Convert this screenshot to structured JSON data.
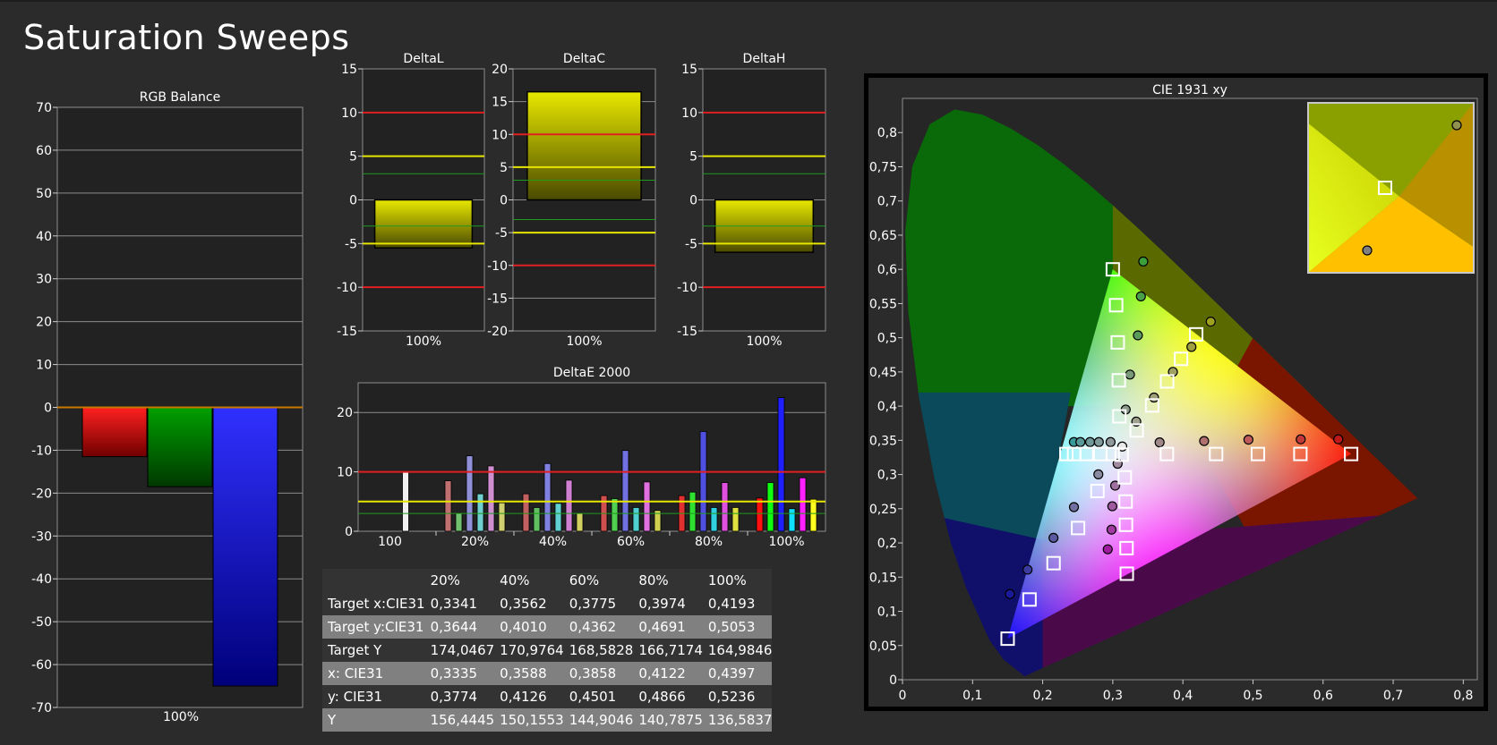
{
  "page": {
    "title": "Saturation Sweeps"
  },
  "colors": {
    "background": "#2b2b2b",
    "plot_bg": "#222222",
    "grid": "#8c8c8c",
    "red_line": "#e02020",
    "yellow_line": "#e6e600",
    "green_line": "#1f9a1f",
    "bar_yellow": "#d8d800"
  },
  "chart_data": [
    {
      "id": "rgb_balance",
      "type": "bar",
      "title": "RGB Balance",
      "categories": [
        "100%"
      ],
      "series": [
        {
          "values": [
            -11.5
          ]
        },
        {
          "values": [
            -18.5
          ]
        },
        {
          "values": [
            -65
          ]
        }
      ],
      "bar_colors": [
        "#ff0000",
        "#008000",
        "#0000ff"
      ],
      "ylim": [
        -70,
        70
      ],
      "yticks": [
        70,
        60,
        50,
        40,
        30,
        20,
        10,
        0,
        -10,
        -20,
        -30,
        -40,
        -50,
        -60,
        -70
      ],
      "grid": true
    },
    {
      "id": "deltaL",
      "type": "bar",
      "title": "DeltaL",
      "categories": [
        "100%"
      ],
      "values": [
        -5.5
      ],
      "ylim": [
        -15,
        15
      ],
      "yticks": [
        15,
        10,
        5,
        0,
        -5,
        -10,
        -15
      ],
      "thresholds": {
        "red": [
          10,
          -10
        ],
        "yellow": [
          5,
          -5
        ],
        "green": [
          3,
          -3
        ]
      },
      "grid": true
    },
    {
      "id": "deltaC",
      "type": "bar",
      "title": "DeltaC",
      "categories": [
        "100%"
      ],
      "values": [
        16.5
      ],
      "ylim": [
        -20,
        20
      ],
      "yticks": [
        20,
        15,
        10,
        5,
        0,
        -5,
        -10,
        -15,
        -20
      ],
      "thresholds": {
        "red": [
          10,
          -10
        ],
        "yellow": [
          5,
          -5
        ],
        "green": [
          3,
          -3
        ]
      },
      "grid": true
    },
    {
      "id": "deltaH",
      "type": "bar",
      "title": "DeltaH",
      "categories": [
        "100%"
      ],
      "values": [
        -6
      ],
      "ylim": [
        -15,
        15
      ],
      "yticks": [
        15,
        10,
        5,
        0,
        -5,
        -10,
        -15
      ],
      "thresholds": {
        "red": [
          10,
          -10
        ],
        "yellow": [
          5,
          -5
        ],
        "green": [
          3,
          -3
        ]
      },
      "grid": true
    },
    {
      "id": "deltaE2000",
      "type": "bar",
      "title": "DeltaE 2000",
      "categories": [
        "100",
        "20%",
        "40%",
        "60%",
        "80%",
        "100%"
      ],
      "groups": [
        {
          "bars": [
            {
              "value": 10,
              "color": "#f0f0f0"
            }
          ]
        },
        {
          "bars": [
            {
              "value": 8.5,
              "color": "#c07070"
            },
            {
              "value": 3,
              "color": "#70c070"
            },
            {
              "value": 12.7,
              "color": "#9090d8"
            },
            {
              "value": 6.3,
              "color": "#70d0d0"
            },
            {
              "value": 11,
              "color": "#d090d0"
            },
            {
              "value": 4.8,
              "color": "#d0d070"
            }
          ]
        },
        {
          "bars": [
            {
              "value": 6.3,
              "color": "#c06060"
            },
            {
              "value": 4,
              "color": "#60c060"
            },
            {
              "value": 11.4,
              "color": "#8080e0"
            },
            {
              "value": 4.7,
              "color": "#60d0d0"
            },
            {
              "value": 8.6,
              "color": "#d080d0"
            },
            {
              "value": 3,
              "color": "#d0d060"
            }
          ]
        },
        {
          "bars": [
            {
              "value": 6,
              "color": "#d05050"
            },
            {
              "value": 5.5,
              "color": "#50d050"
            },
            {
              "value": 13.6,
              "color": "#7070e0"
            },
            {
              "value": 4,
              "color": "#50d0d0"
            },
            {
              "value": 8.3,
              "color": "#e070e0"
            },
            {
              "value": 3.5,
              "color": "#d0d050"
            }
          ]
        },
        {
          "bars": [
            {
              "value": 6,
              "color": "#e03030"
            },
            {
              "value": 6.6,
              "color": "#30e030"
            },
            {
              "value": 16.8,
              "color": "#5050e0"
            },
            {
              "value": 4,
              "color": "#30d0e0"
            },
            {
              "value": 8.2,
              "color": "#e050e0"
            },
            {
              "value": 4,
              "color": "#e0e040"
            }
          ]
        },
        {
          "bars": [
            {
              "value": 5.6,
              "color": "#ff1010"
            },
            {
              "value": 8.2,
              "color": "#10ff10"
            },
            {
              "value": 22.5,
              "color": "#2020ff"
            },
            {
              "value": 3.8,
              "color": "#10e0ff"
            },
            {
              "value": 9,
              "color": "#ff20ff"
            },
            {
              "value": 5.4,
              "color": "#ffff20"
            }
          ]
        }
      ],
      "ylim": [
        0,
        25
      ],
      "yticks": [
        20,
        10,
        0
      ],
      "thresholds": {
        "red": [
          10
        ],
        "yellow": [
          5
        ],
        "green": [
          3
        ]
      },
      "grid": true
    },
    {
      "id": "cie1931",
      "type": "scatter",
      "title": "CIE 1931 xy",
      "xlim": [
        0,
        0.82
      ],
      "ylim": [
        0,
        0.85
      ],
      "xticks": [
        "0",
        "0,1",
        "0,2",
        "0,3",
        "0,4",
        "0,5",
        "0,6",
        "0,7",
        "0,8"
      ],
      "yticks": [
        "0",
        "0,05",
        "0,1",
        "0,15",
        "0,2",
        "0,25",
        "0,3",
        "0,35",
        "0,4",
        "0,45",
        "0,5",
        "0,55",
        "0,6",
        "0,65",
        "0,7",
        "0,75",
        "0,8"
      ],
      "gamut_triangle": [
        [
          0.64,
          0.33
        ],
        [
          0.3,
          0.6
        ],
        [
          0.15,
          0.06
        ]
      ],
      "targets": [
        [
          0.3127,
          0.329
        ],
        [
          0.64,
          0.33
        ],
        [
          0.5676,
          0.3301
        ],
        [
          0.507,
          0.33
        ],
        [
          0.4474,
          0.33
        ],
        [
          0.3772,
          0.33
        ],
        [
          0.3,
          0.6
        ],
        [
          0.3048,
          0.5476
        ],
        [
          0.3071,
          0.4932
        ],
        [
          0.3086,
          0.4377
        ],
        [
          0.3094,
          0.3851
        ],
        [
          0.15,
          0.06
        ],
        [
          0.1812,
          0.1173
        ],
        [
          0.2155,
          0.1704
        ],
        [
          0.2505,
          0.2218
        ],
        [
          0.2781,
          0.2759
        ],
        [
          0.3,
          0.33
        ],
        [
          0.2822,
          0.33
        ],
        [
          0.2628,
          0.33
        ],
        [
          0.2448,
          0.33
        ],
        [
          0.2338,
          0.33
        ],
        [
          0.32,
          0.155
        ],
        [
          0.3196,
          0.1924
        ],
        [
          0.3188,
          0.2265
        ],
        [
          0.3183,
          0.2606
        ],
        [
          0.3171,
          0.2959
        ],
        [
          0.419,
          0.505
        ],
        [
          0.3974,
          0.4691
        ],
        [
          0.3775,
          0.4362
        ],
        [
          0.3562,
          0.401
        ],
        [
          0.3341,
          0.3644
        ]
      ],
      "measured": [
        {
          "x": 0.3135,
          "y": 0.341,
          "color": "#e8e8e8"
        },
        {
          "x": 0.6217,
          "y": 0.3515,
          "color": "#c01818"
        },
        {
          "x": 0.5681,
          "y": 0.3515,
          "color": "#c03838"
        },
        {
          "x": 0.4935,
          "y": 0.351,
          "color": "#c05a5a"
        },
        {
          "x": 0.4303,
          "y": 0.349,
          "color": "#b07070"
        },
        {
          "x": 0.3668,
          "y": 0.347,
          "color": "#a08888"
        },
        {
          "x": 0.3435,
          "y": 0.6115,
          "color": "#3aa03a"
        },
        {
          "x": 0.3401,
          "y": 0.5605,
          "color": "#4aa04a"
        },
        {
          "x": 0.3358,
          "y": 0.5035,
          "color": "#5a9a5a"
        },
        {
          "x": 0.3245,
          "y": 0.4462,
          "color": "#789878"
        },
        {
          "x": 0.3184,
          "y": 0.395,
          "color": "#8a9a8a"
        },
        {
          "x": 0.1532,
          "y": 0.1253,
          "color": "#1a1a9a"
        },
        {
          "x": 0.1784,
          "y": 0.1609,
          "color": "#3a3aa0"
        },
        {
          "x": 0.2154,
          "y": 0.2074,
          "color": "#5a5aa0"
        },
        {
          "x": 0.2446,
          "y": 0.2524,
          "color": "#7070a0"
        },
        {
          "x": 0.2794,
          "y": 0.3003,
          "color": "#8a8aa0"
        },
        {
          "x": 0.2445,
          "y": 0.3475,
          "color": "#3a9a9a"
        },
        {
          "x": 0.2538,
          "y": 0.3475,
          "color": "#5a9a9a"
        },
        {
          "x": 0.2676,
          "y": 0.3475,
          "color": "#709a9a"
        },
        {
          "x": 0.2801,
          "y": 0.3475,
          "color": "#809a9a"
        },
        {
          "x": 0.2968,
          "y": 0.3475,
          "color": "#909a9a"
        },
        {
          "x": 0.2928,
          "y": 0.1907,
          "color": "#a01aa0"
        },
        {
          "x": 0.2982,
          "y": 0.2194,
          "color": "#a03aa0"
        },
        {
          "x": 0.2993,
          "y": 0.2536,
          "color": "#a05aa0"
        },
        {
          "x": 0.3034,
          "y": 0.2838,
          "color": "#a070a0"
        },
        {
          "x": 0.3069,
          "y": 0.3158,
          "color": "#a08aa0"
        },
        {
          "x": 0.4397,
          "y": 0.5236,
          "color": "#a0a020"
        },
        {
          "x": 0.4122,
          "y": 0.4866,
          "color": "#a0a040"
        },
        {
          "x": 0.3858,
          "y": 0.4501,
          "color": "#a0a060"
        },
        {
          "x": 0.3588,
          "y": 0.4126,
          "color": "#a0a078"
        },
        {
          "x": 0.3335,
          "y": 0.3774,
          "color": "#a0a090"
        }
      ]
    }
  ],
  "table": {
    "columns": [
      "",
      "20%",
      "40%",
      "60%",
      "80%",
      "100%"
    ],
    "rows": [
      [
        "Target x:CIE31",
        "0,3341",
        "0,3562",
        "0,3775",
        "0,3974",
        "0,4193"
      ],
      [
        "Target y:CIE31",
        "0,3644",
        "0,4010",
        "0,4362",
        "0,4691",
        "0,5053"
      ],
      [
        "Target Y",
        "174,0467",
        "170,9764",
        "168,5828",
        "166,7174",
        "164,9846"
      ],
      [
        "x: CIE31",
        "0,3335",
        "0,3588",
        "0,3858",
        "0,4122",
        "0,4397"
      ],
      [
        "y: CIE31",
        "0,3774",
        "0,4126",
        "0,4501",
        "0,4866",
        "0,5236"
      ],
      [
        "Y",
        "156,4445",
        "150,1553",
        "144,9046",
        "140,7875",
        "136,5837"
      ]
    ]
  }
}
